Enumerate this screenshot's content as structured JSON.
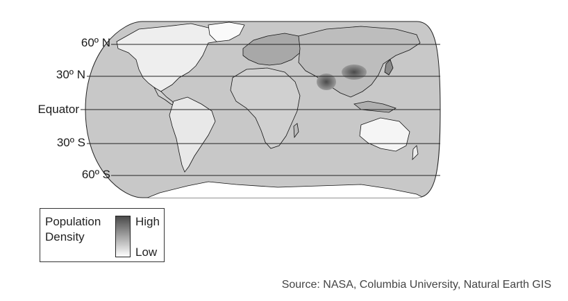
{
  "map": {
    "latitudes": [
      {
        "label": "60º N",
        "lat": 60
      },
      {
        "label": "30º N",
        "lat": 30
      },
      {
        "label": "Equator",
        "lat": 0
      },
      {
        "label": "30º S",
        "lat": -30
      },
      {
        "label": "60º S",
        "lat": -60
      }
    ],
    "projection": "Robinson",
    "colors": {
      "ocean": "#c8c8c8",
      "land_low": "#ffffff",
      "land_high": "#3a3a3a",
      "border": "#111111"
    }
  },
  "legend": {
    "title_line1": "Population",
    "title_line2": "Density",
    "high_label": "High",
    "low_label": "Low",
    "gradient_top": "#4a4a4a",
    "gradient_bottom": "#ffffff"
  },
  "source": {
    "text": "Source: NASA, Columbia University, Natural Earth GIS"
  }
}
